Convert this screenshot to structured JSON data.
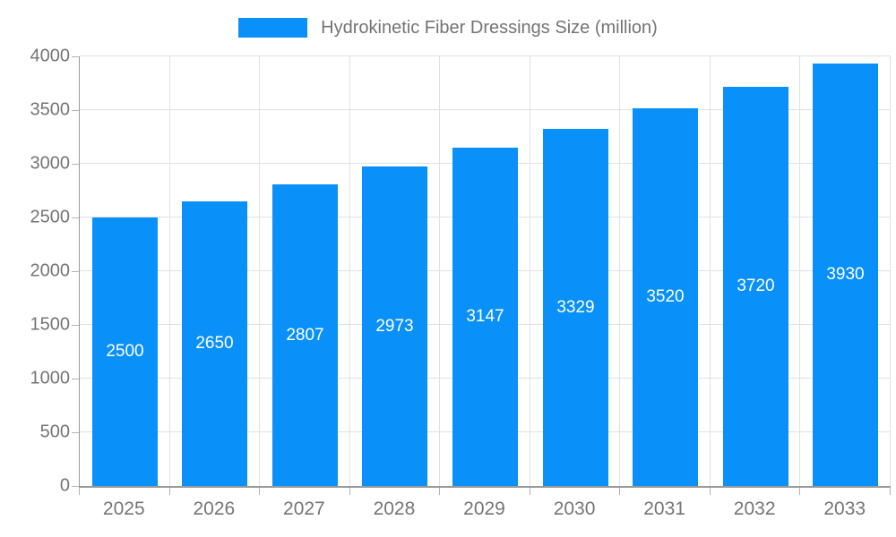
{
  "chart_data": {
    "type": "bar",
    "title": "Hydrokinetic Fiber Dressings Size (million)",
    "legend": [
      "Hydrokinetic Fiber Dressings Size (million)"
    ],
    "categories": [
      "2025",
      "2026",
      "2027",
      "2028",
      "2029",
      "2030",
      "2031",
      "2032",
      "2033"
    ],
    "values": [
      2500,
      2650,
      2807,
      2973,
      3147,
      3329,
      3520,
      3720,
      3930
    ],
    "xlabel": "",
    "ylabel": "",
    "ylim": [
      0,
      4000
    ],
    "yticks": [
      0,
      500,
      1000,
      1500,
      2000,
      2500,
      3000,
      3500,
      4000
    ],
    "grid": true,
    "legend_position": "top",
    "bar_label_position": "inside-center",
    "colors": {
      "bar": "#0990F9",
      "bar_label": "#FFFFFF",
      "axis_line": "#999999",
      "grid_line": "#E0E0E0",
      "tick_line": "#B3B3B3",
      "axis_text": "#757575",
      "legend_text": "#737373",
      "background": "#FFFFFF"
    }
  }
}
